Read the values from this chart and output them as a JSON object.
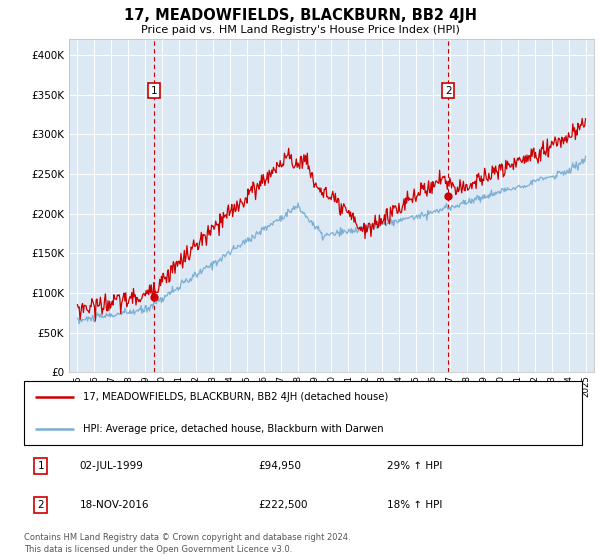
{
  "title": "17, MEADOWFIELDS, BLACKBURN, BB2 4JH",
  "subtitle": "Price paid vs. HM Land Registry's House Price Index (HPI)",
  "background_color": "#dce9f5",
  "red_color": "#cc0000",
  "blue_color": "#7bafd4",
  "marker1_date_x": 1999.5,
  "marker1_price": 94950,
  "marker1_label": "1",
  "marker1_date_str": "02-JUL-1999",
  "marker1_price_str": "£94,950",
  "marker1_pct": "29% ↑ HPI",
  "marker2_date_x": 2016.9,
  "marker2_price": 222500,
  "marker2_label": "2",
  "marker2_date_str": "18-NOV-2016",
  "marker2_price_str": "£222,500",
  "marker2_pct": "18% ↑ HPI",
  "legend_line1": "17, MEADOWFIELDS, BLACKBURN, BB2 4JH (detached house)",
  "legend_line2": "HPI: Average price, detached house, Blackburn with Darwen",
  "footer": "Contains HM Land Registry data © Crown copyright and database right 2024.\nThis data is licensed under the Open Government Licence v3.0.",
  "ylim_min": 0,
  "ylim_max": 420000,
  "xmin": 1994.5,
  "xmax": 2025.5,
  "yticks": [
    0,
    50000,
    100000,
    150000,
    200000,
    250000,
    300000,
    350000,
    400000
  ]
}
